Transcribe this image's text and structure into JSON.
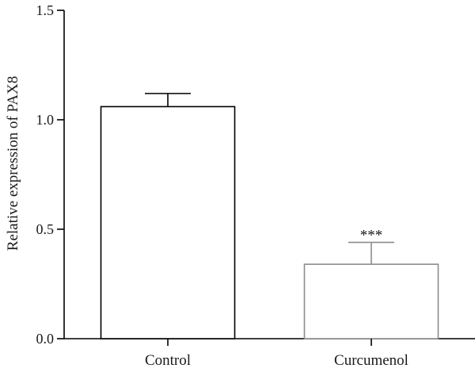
{
  "chart_data": {
    "type": "bar",
    "title": "",
    "xlabel": "",
    "ylabel": "Relative expression of PAX8",
    "categories": [
      "Control",
      "Curcumenol"
    ],
    "values": [
      1.06,
      0.34
    ],
    "errors": [
      0.06,
      0.1
    ],
    "ylim": [
      0,
      1.5
    ],
    "yticks": [
      {
        "value": 0.0,
        "label": "0.0"
      },
      {
        "value": 0.5,
        "label": "0.5"
      },
      {
        "value": 1.0,
        "label": "1.0"
      },
      {
        "value": 1.5,
        "label": "1.5"
      }
    ],
    "annotations": [
      "",
      "***"
    ],
    "bar_colors": [
      "#000000",
      "#8c8c8c"
    ],
    "grid": false,
    "legend": "none"
  }
}
